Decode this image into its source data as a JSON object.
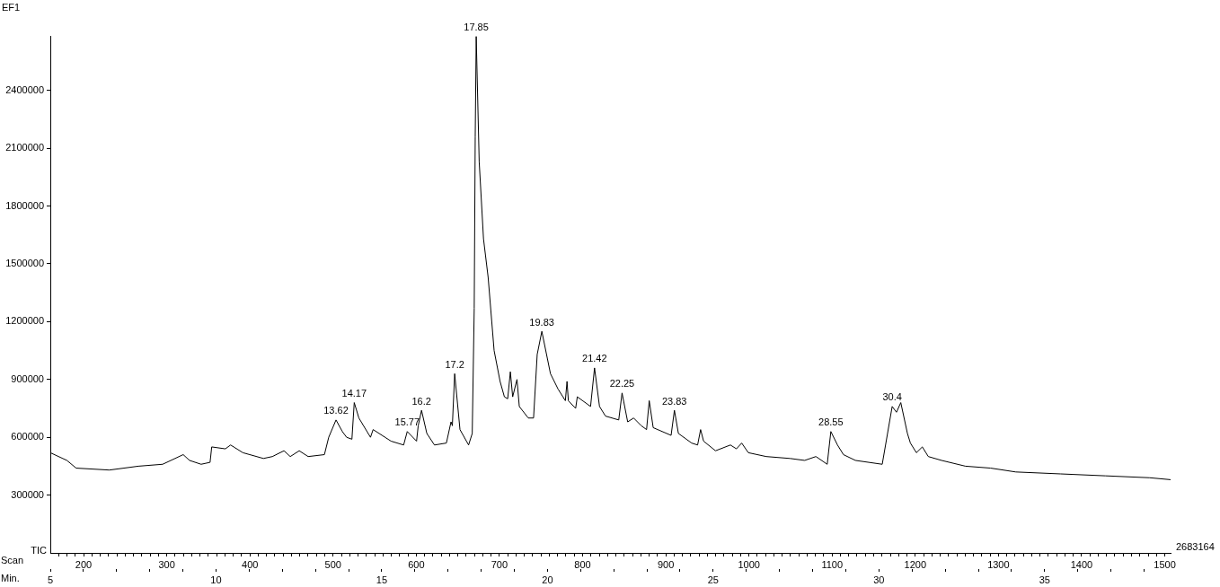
{
  "chart_data": {
    "type": "line",
    "title": "EF1",
    "ylabel": "TIC",
    "xlabel": "Min.",
    "x2label": "Scan",
    "color": "#000000",
    "marker": "none",
    "grid": false,
    "legend": false,
    "x": [
      5.0,
      5.5,
      5.78,
      6.78,
      7.66,
      8.39,
      9.01,
      9.2,
      9.55,
      9.82,
      9.87,
      10.28,
      10.44,
      10.81,
      11.43,
      11.7,
      12.05,
      12.24,
      12.51,
      12.78,
      13.27,
      13.4,
      13.62,
      13.81,
      13.94,
      14.1,
      14.17,
      14.31,
      14.66,
      14.74,
      15.28,
      15.66,
      15.77,
      16.05,
      16.1,
      16.2,
      16.36,
      16.59,
      16.95,
      17.09,
      17.13,
      17.2,
      17.36,
      17.62,
      17.73,
      17.79,
      17.82,
      17.85,
      17.94,
      18.07,
      18.21,
      18.39,
      18.57,
      18.7,
      18.8,
      18.88,
      18.95,
      19.08,
      19.15,
      19.42,
      19.58,
      19.69,
      19.83,
      20.09,
      20.32,
      20.54,
      20.59,
      20.63,
      20.85,
      20.9,
      21.3,
      21.42,
      21.57,
      21.75,
      22.15,
      22.25,
      22.42,
      22.6,
      22.83,
      22.99,
      23.07,
      23.19,
      23.73,
      23.83,
      23.95,
      24.35,
      24.53,
      24.62,
      24.71,
      25.07,
      25.52,
      25.7,
      25.86,
      26.06,
      26.6,
      27.32,
      27.76,
      28.1,
      28.44,
      28.55,
      28.75,
      28.93,
      29.29,
      30.1,
      30.4,
      30.53,
      30.66,
      30.86,
      30.95,
      31.13,
      31.31,
      31.49,
      31.89,
      32.61,
      33.37,
      34.13,
      35.48,
      36.83,
      38.17,
      38.8
    ],
    "values": [
      520000,
      480000,
      440000,
      430000,
      450000,
      460000,
      510000,
      480000,
      460000,
      470000,
      550000,
      540000,
      560000,
      520000,
      490000,
      500000,
      530000,
      500000,
      530000,
      500000,
      510000,
      600000,
      690000,
      630000,
      600000,
      590000,
      780000,
      700000,
      600000,
      640000,
      580000,
      560000,
      630000,
      580000,
      660000,
      740000,
      620000,
      560000,
      570000,
      680000,
      660000,
      930000,
      640000,
      560000,
      620000,
      1270000,
      2160000,
      2680000,
      2030000,
      1630000,
      1430000,
      1050000,
      890000,
      810000,
      800000,
      940000,
      810000,
      900000,
      760000,
      700000,
      700000,
      1030000,
      1150000,
      930000,
      850000,
      790000,
      890000,
      790000,
      750000,
      810000,
      760000,
      960000,
      760000,
      710000,
      690000,
      830000,
      680000,
      700000,
      660000,
      640000,
      790000,
      650000,
      610000,
      740000,
      620000,
      570000,
      560000,
      640000,
      580000,
      530000,
      560000,
      540000,
      570000,
      520000,
      500000,
      490000,
      480000,
      500000,
      460000,
      630000,
      560000,
      510000,
      480000,
      460000,
      760000,
      730000,
      780000,
      620000,
      570000,
      520000,
      550000,
      500000,
      480000,
      450000,
      440000,
      420000,
      410000,
      400000,
      390000,
      380000
    ],
    "ylim": [
      0,
      2683164
    ],
    "yticks": [
      300000,
      600000,
      900000,
      1200000,
      1500000,
      1800000,
      2100000,
      2400000
    ],
    "xlim": [
      5,
      38.8
    ],
    "xticks": [
      5,
      {
        "value": 6,
        "label": null
      },
      {
        "value": 7,
        "label": null
      },
      {
        "value": 8,
        "label": null
      },
      {
        "value": 9,
        "label": null
      },
      10,
      {
        "value": 11,
        "label": null
      },
      {
        "value": 12,
        "label": null
      },
      {
        "value": 13,
        "label": null
      },
      {
        "value": 14,
        "label": null
      },
      15,
      {
        "value": 16,
        "label": null
      },
      {
        "value": 17,
        "label": null
      },
      {
        "value": 18,
        "label": null
      },
      {
        "value": 19,
        "label": null
      },
      20,
      {
        "value": 21,
        "label": null
      },
      {
        "value": 22,
        "label": null
      },
      {
        "value": 23,
        "label": null
      },
      {
        "value": 24,
        "label": null
      },
      25,
      {
        "value": 26,
        "label": null
      },
      {
        "value": 27,
        "label": null
      },
      {
        "value": 28,
        "label": null
      },
      {
        "value": 29,
        "label": null
      },
      30,
      {
        "value": 31,
        "label": null
      },
      {
        "value": 32,
        "label": null
      },
      {
        "value": 33,
        "label": null
      },
      {
        "value": 34,
        "label": null
      },
      35,
      {
        "value": 36,
        "label": null
      },
      {
        "value": 37,
        "label": null
      },
      {
        "value": 38,
        "label": null
      }
    ],
    "x2lim": [
      160,
      1507
    ],
    "x2ticks": [
      {
        "value": 170,
        "label": null
      },
      {
        "value": 180,
        "label": null
      },
      {
        "value": 190,
        "label": null
      },
      200,
      {
        "value": 210,
        "label": null
      },
      {
        "value": 220,
        "label": null
      },
      {
        "value": 230,
        "label": null
      },
      {
        "value": 240,
        "label": null
      },
      {
        "value": 250,
        "label": null
      },
      {
        "value": 260,
        "label": null
      },
      {
        "value": 270,
        "label": null
      },
      {
        "value": 280,
        "label": null
      },
      {
        "value": 290,
        "label": null
      },
      300,
      {
        "value": 310,
        "label": null
      },
      {
        "value": 320,
        "label": null
      },
      {
        "value": 330,
        "label": null
      },
      {
        "value": 340,
        "label": null
      },
      {
        "value": 350,
        "label": null
      },
      {
        "value": 360,
        "label": null
      },
      {
        "value": 370,
        "label": null
      },
      {
        "value": 380,
        "label": null
      },
      {
        "value": 390,
        "label": null
      },
      400,
      {
        "value": 410,
        "label": null
      },
      {
        "value": 420,
        "label": null
      },
      {
        "value": 430,
        "label": null
      },
      {
        "value": 440,
        "label": null
      },
      {
        "value": 450,
        "label": null
      },
      {
        "value": 460,
        "label": null
      },
      {
        "value": 470,
        "label": null
      },
      {
        "value": 480,
        "label": null
      },
      {
        "value": 490,
        "label": null
      },
      500,
      {
        "value": 510,
        "label": null
      },
      {
        "value": 520,
        "label": null
      },
      {
        "value": 530,
        "label": null
      },
      {
        "value": 540,
        "label": null
      },
      {
        "value": 550,
        "label": null
      },
      {
        "value": 560,
        "label": null
      },
      {
        "value": 570,
        "label": null
      },
      {
        "value": 580,
        "label": null
      },
      {
        "value": 590,
        "label": null
      },
      600,
      {
        "value": 610,
        "label": null
      },
      {
        "value": 620,
        "label": null
      },
      {
        "value": 630,
        "label": null
      },
      {
        "value": 640,
        "label": null
      },
      {
        "value": 650,
        "label": null
      },
      {
        "value": 660,
        "label": null
      },
      {
        "value": 670,
        "label": null
      },
      {
        "value": 680,
        "label": null
      },
      {
        "value": 690,
        "label": null
      },
      700,
      {
        "value": 710,
        "label": null
      },
      {
        "value": 720,
        "label": null
      },
      {
        "value": 730,
        "label": null
      },
      {
        "value": 740,
        "label": null
      },
      {
        "value": 750,
        "label": null
      },
      {
        "value": 760,
        "label": null
      },
      {
        "value": 770,
        "label": null
      },
      {
        "value": 780,
        "label": null
      },
      {
        "value": 790,
        "label": null
      },
      800,
      {
        "value": 810,
        "label": null
      },
      {
        "value": 820,
        "label": null
      },
      {
        "value": 830,
        "label": null
      },
      {
        "value": 840,
        "label": null
      },
      {
        "value": 850,
        "label": null
      },
      {
        "value": 860,
        "label": null
      },
      {
        "value": 870,
        "label": null
      },
      {
        "value": 880,
        "label": null
      },
      {
        "value": 890,
        "label": null
      },
      900,
      {
        "value": 910,
        "label": null
      },
      {
        "value": 920,
        "label": null
      },
      {
        "value": 930,
        "label": null
      },
      {
        "value": 940,
        "label": null
      },
      {
        "value": 950,
        "label": null
      },
      {
        "value": 960,
        "label": null
      },
      {
        "value": 970,
        "label": null
      },
      {
        "value": 980,
        "label": null
      },
      {
        "value": 990,
        "label": null
      },
      1000,
      {
        "value": 1010,
        "label": null
      },
      {
        "value": 1020,
        "label": null
      },
      {
        "value": 1030,
        "label": null
      },
      {
        "value": 1040,
        "label": null
      },
      {
        "value": 1050,
        "label": null
      },
      {
        "value": 1060,
        "label": null
      },
      {
        "value": 1070,
        "label": null
      },
      {
        "value": 1080,
        "label": null
      },
      {
        "value": 1090,
        "label": null
      },
      1100,
      {
        "value": 1110,
        "label": null
      },
      {
        "value": 1120,
        "label": null
      },
      {
        "value": 1130,
        "label": null
      },
      {
        "value": 1140,
        "label": null
      },
      {
        "value": 1150,
        "label": null
      },
      {
        "value": 1160,
        "label": null
      },
      {
        "value": 1170,
        "label": null
      },
      {
        "value": 1180,
        "label": null
      },
      {
        "value": 1190,
        "label": null
      },
      1200,
      {
        "value": 1210,
        "label": null
      },
      {
        "value": 1220,
        "label": null
      },
      {
        "value": 1230,
        "label": null
      },
      {
        "value": 1240,
        "label": null
      },
      {
        "value": 1250,
        "label": null
      },
      {
        "value": 1260,
        "label": null
      },
      {
        "value": 1270,
        "label": null
      },
      {
        "value": 1280,
        "label": null
      },
      {
        "value": 1290,
        "label": null
      },
      1300,
      {
        "value": 1310,
        "label": null
      },
      {
        "value": 1320,
        "label": null
      },
      {
        "value": 1330,
        "label": null
      },
      {
        "value": 1340,
        "label": null
      },
      {
        "value": 1350,
        "label": null
      },
      {
        "value": 1360,
        "label": null
      },
      {
        "value": 1370,
        "label": null
      },
      {
        "value": 1380,
        "label": null
      },
      {
        "value": 1390,
        "label": null
      },
      1400,
      {
        "value": 1410,
        "label": null
      },
      {
        "value": 1420,
        "label": null
      },
      {
        "value": 1430,
        "label": null
      },
      {
        "value": 1440,
        "label": null
      },
      {
        "value": 1450,
        "label": null
      },
      {
        "value": 1460,
        "label": null
      },
      {
        "value": 1470,
        "label": null
      },
      {
        "value": 1480,
        "label": null
      },
      {
        "value": 1490,
        "label": null
      },
      1500
    ],
    "annotations": [
      {
        "text": "13.62",
        "x": 13.62,
        "y": 690000
      },
      {
        "text": "14.17",
        "x": 14.17,
        "y": 780000
      },
      {
        "text": "15.77",
        "x": 15.77,
        "y": 630000
      },
      {
        "text": "16.2",
        "x": 16.2,
        "y": 740000
      },
      {
        "text": "17.2",
        "x": 17.2,
        "y": 930000
      },
      {
        "text": "17.85",
        "x": 17.85,
        "y": 2680000
      },
      {
        "text": "19.83",
        "x": 19.83,
        "y": 1150000
      },
      {
        "text": "21.42",
        "x": 21.42,
        "y": 960000
      },
      {
        "text": "22.25",
        "x": 22.25,
        "y": 830000
      },
      {
        "text": "23.83",
        "x": 23.83,
        "y": 740000
      },
      {
        "text": "28.55",
        "x": 28.55,
        "y": 630000
      },
      {
        "text": "30.4",
        "x": 30.4,
        "y": 760000
      },
      "2683164"
    ]
  }
}
